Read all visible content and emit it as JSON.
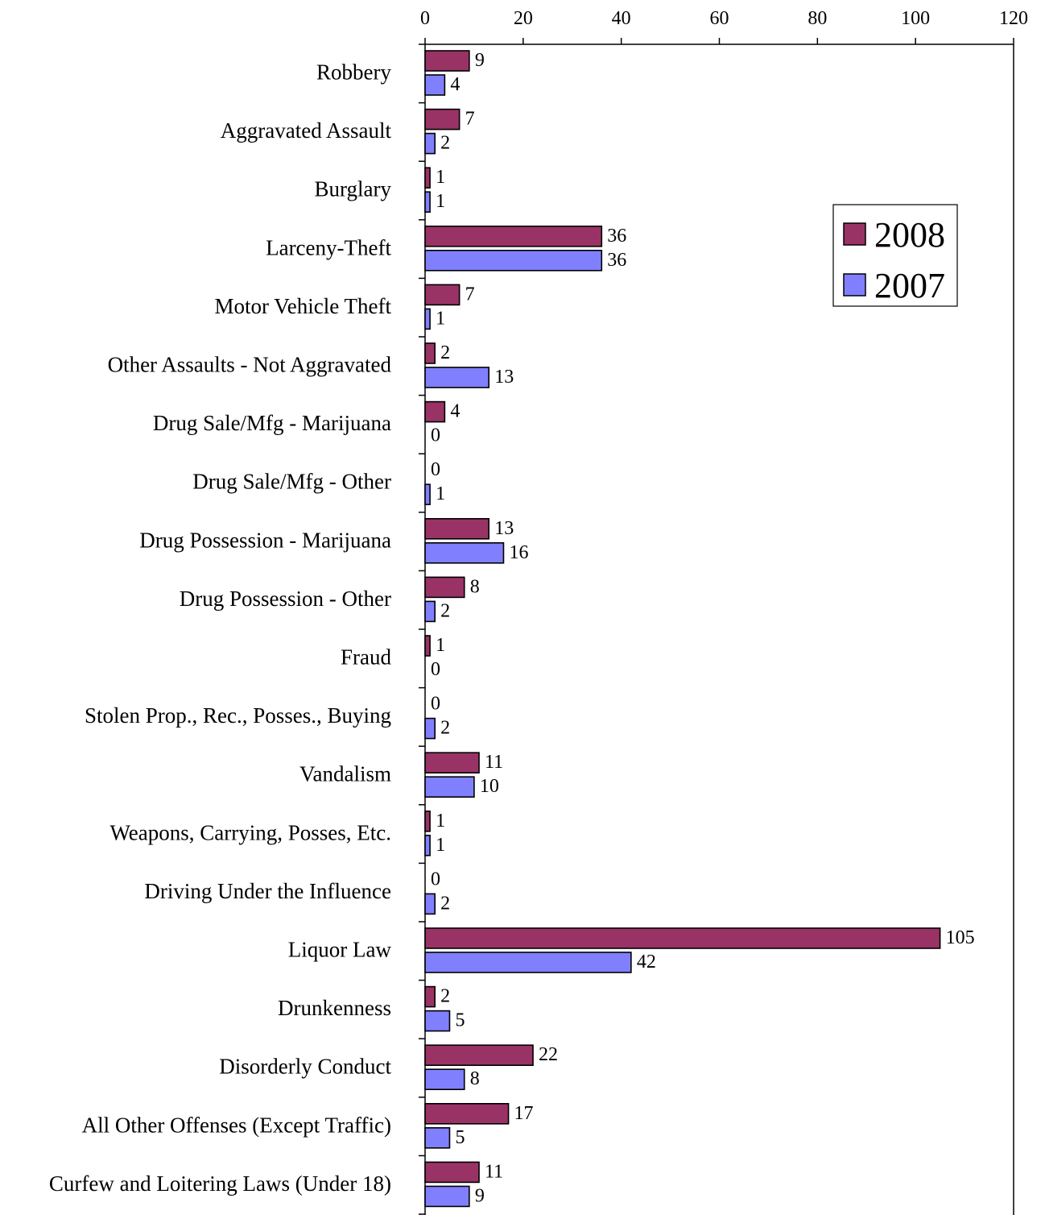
{
  "chart_data": {
    "type": "bar",
    "orientation": "horizontal",
    "categories": [
      "Robbery",
      "Aggravated Assault",
      "Burglary",
      "Larceny-Theft",
      "Motor Vehicle Theft",
      "Other Assaults - Not Aggravated",
      "Drug Sale/Mfg - Marijuana",
      "Drug Sale/Mfg - Other",
      "Drug Possession - Marijuana",
      "Drug Possession - Other",
      "Fraud",
      "Stolen Prop., Rec., Posses., Buying",
      "Vandalism",
      "Weapons, Carrying, Posses, Etc.",
      "Driving Under the Influence",
      "Liquor Law",
      "Drunkenness",
      "Disorderly Conduct",
      "All Other Offenses (Except Traffic)",
      "Curfew and Loitering Laws (Under 18)"
    ],
    "series": [
      {
        "name": "2008",
        "color": "#993366",
        "values": [
          9,
          7,
          1,
          36,
          7,
          2,
          4,
          0,
          13,
          8,
          1,
          0,
          11,
          1,
          0,
          105,
          2,
          22,
          17,
          11
        ]
      },
      {
        "name": "2007",
        "color": "#8080ff",
        "values": [
          4,
          2,
          1,
          36,
          1,
          13,
          0,
          1,
          16,
          2,
          0,
          2,
          10,
          1,
          2,
          42,
          5,
          8,
          5,
          9
        ]
      }
    ],
    "xlim": [
      0,
      120
    ],
    "xticks": [
      0,
      20,
      40,
      60,
      80,
      100,
      120
    ],
    "axis_position": "top",
    "data_labels": true,
    "grid": false,
    "legend": {
      "position": "right",
      "entries": [
        "2008",
        "2007"
      ]
    }
  }
}
